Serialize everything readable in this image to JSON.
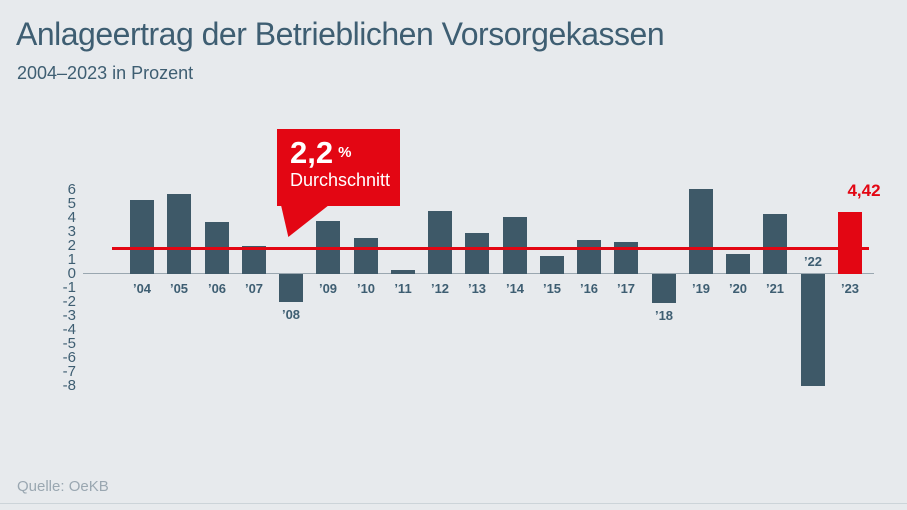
{
  "header": {
    "title": "Anlageertrag der Betrieblichen Vorsorgekassen",
    "subtitle": "2004–2023 in Prozent"
  },
  "callout": {
    "value": "2,2",
    "unit": "%",
    "caption": "Durchschnitt"
  },
  "annotation": {
    "value_label": "4,42"
  },
  "footer": {
    "source": "Quelle: OeKB"
  },
  "colors": {
    "background": "#e7eaed",
    "bar": "#3e5968",
    "accent_red": "#e30613",
    "text": "#3e5e72",
    "muted": "#9aa7b1",
    "axis_line": "#9aa7b0"
  },
  "chart_data": {
    "type": "bar",
    "title": "Anlageertrag der Betrieblichen Vorsorgekassen",
    "subtitle": "2004–2023 in Prozent",
    "categories": [
      "’04",
      "’05",
      "’06",
      "’07",
      "’08",
      "’09",
      "’10",
      "’11",
      "’12",
      "’13",
      "’14",
      "’15",
      "’16",
      "’17",
      "’18",
      "’19",
      "’20",
      "’21",
      "’22",
      "’23"
    ],
    "values": [
      5.3,
      5.7,
      3.7,
      2.0,
      -2.0,
      3.8,
      2.6,
      0.3,
      4.5,
      2.9,
      4.1,
      1.3,
      2.4,
      2.3,
      -2.1,
      6.1,
      1.4,
      4.3,
      -8.0,
      4.42
    ],
    "highlight_index": 19,
    "highlight_value_label": "4,42",
    "average_value": 2.2,
    "average_label": "2,2 % Durchschnitt",
    "ylim": [
      -8,
      6
    ],
    "yticks": [
      6,
      5,
      4,
      3,
      2,
      1,
      0,
      -1,
      -2,
      -3,
      -4,
      -5,
      -6,
      -7,
      -8
    ],
    "grid": false,
    "legend": "none",
    "source": "Quelle: OeKB"
  }
}
